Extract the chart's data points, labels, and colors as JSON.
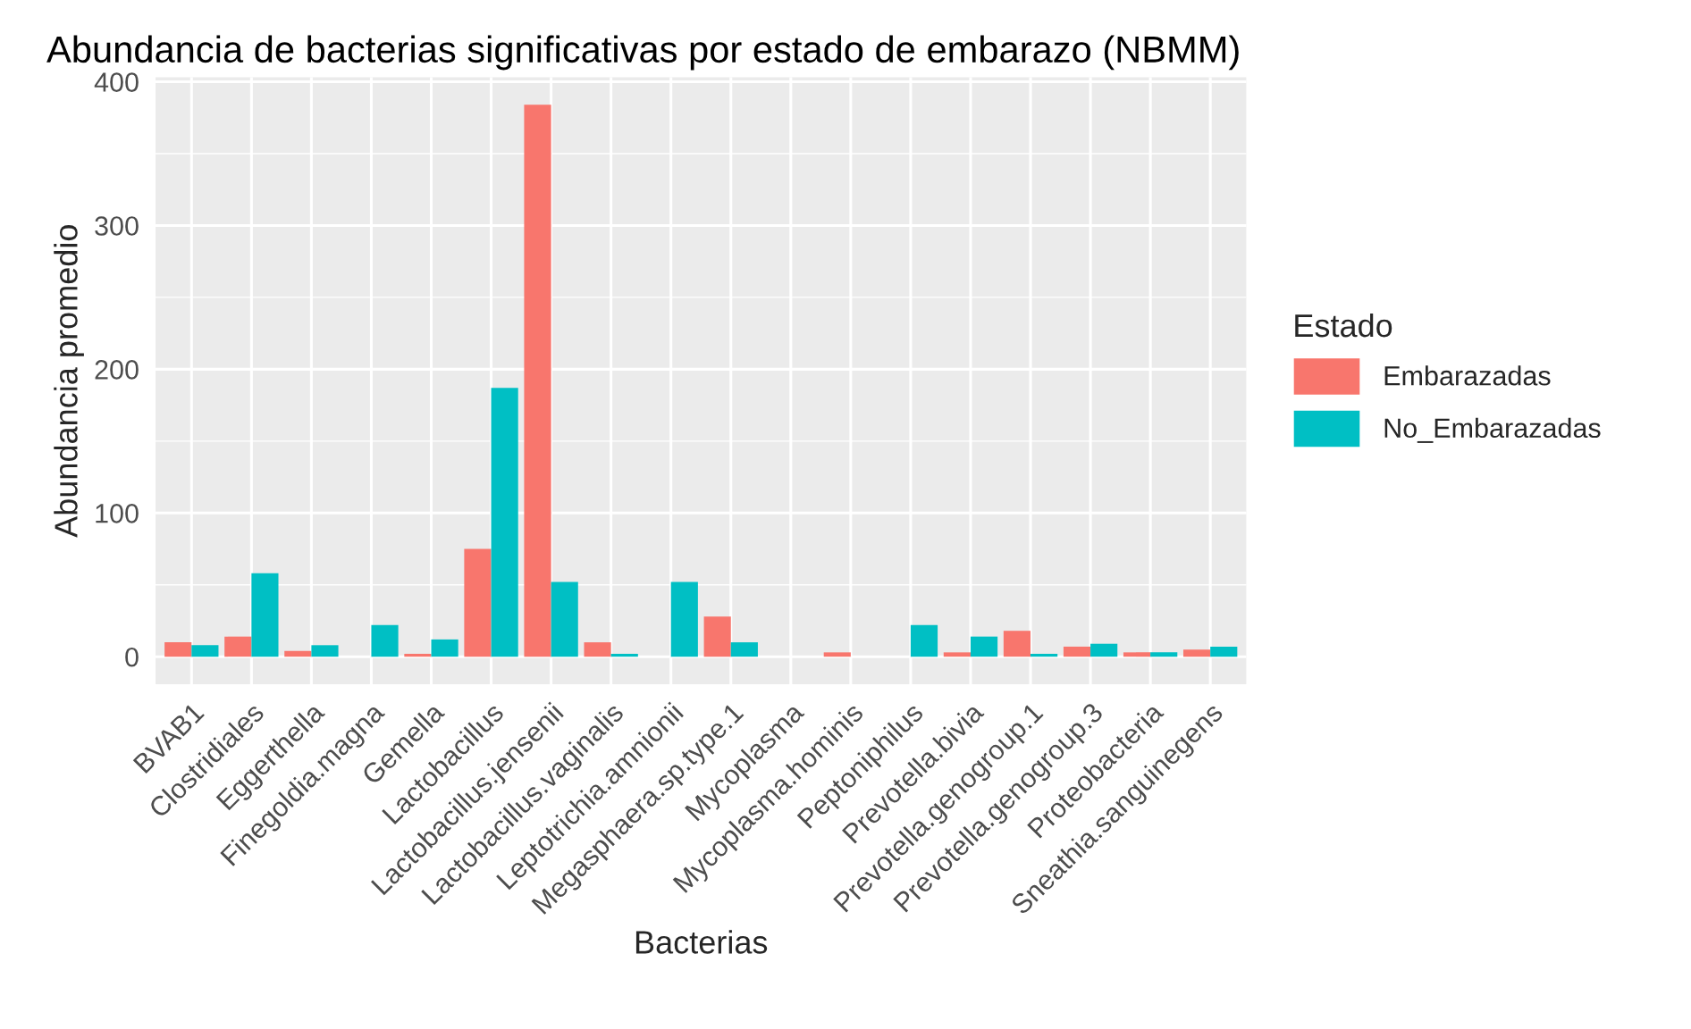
{
  "chart_data": {
    "type": "bar",
    "title": "Abundancia de bacterias significativas por estado de embarazo (NBMM)",
    "xlabel": "Bacterias",
    "ylabel": "Abundancia promedio",
    "legend_title": "Estado",
    "categories": [
      "BVAB1",
      "Clostridiales",
      "Eggerthella",
      "Finegoldia.magna",
      "Gemella",
      "Lactobacillus",
      "Lactobacillus.jensenii",
      "Lactobacillus.vaginalis",
      "Leptotrichia.amnionii",
      "Megasphaera.sp.type.1",
      "Mycoplasma",
      "Mycoplasma.hominis",
      "Peptoniphilus",
      "Prevotella.bivia",
      "Prevotella.genogroup.1",
      "Prevotella.genogroup.3",
      "Proteobacteria",
      "Sneathia.sanguinegens"
    ],
    "series": [
      {
        "name": "Embarazadas",
        "color": "#f8766d",
        "values": [
          10,
          14,
          4,
          0,
          2,
          75,
          384,
          10,
          0,
          28,
          0,
          3,
          0,
          3,
          18,
          7,
          3,
          5
        ]
      },
      {
        "name": "No_Embarazadas",
        "color": "#00bfc4",
        "values": [
          8,
          58,
          8,
          22,
          12,
          187,
          52,
          2,
          52,
          10,
          0,
          0,
          22,
          14,
          2,
          9,
          3,
          7
        ]
      }
    ],
    "ylim": [
      -19.2,
      403.2
    ],
    "yticks": [
      0,
      100,
      200,
      300,
      400
    ],
    "grid": true,
    "legend": "right"
  }
}
